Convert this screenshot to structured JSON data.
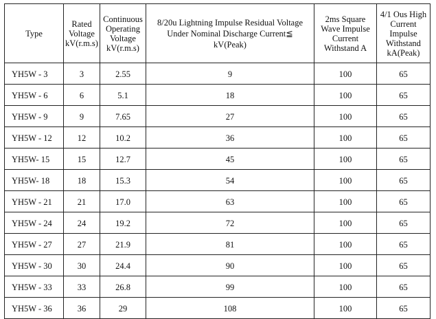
{
  "table": {
    "headers": {
      "type": "Type",
      "rated_voltage": "Rated\nVoltage\nkV(r.m.s)",
      "continuous_voltage": "Continuous\nOperating\nVoltage\nkV(r.m.s)",
      "residual_voltage": "8/20u Lightning Impulse Residual Voltage\nUnder Nominal Discharge Current≦\nkV(Peak)",
      "square_wave": "2ms Square\nWave Impulse\nCurrent\nWithstand A",
      "high_current": "4/1 Ous High\nCurrent\nImpulse\nWithstand\nkA(Peak)"
    },
    "rows": [
      {
        "type": "YH5W - 3",
        "rated": "3",
        "continuous": "2.55",
        "residual": "9",
        "square": "100",
        "high": "65"
      },
      {
        "type": "YH5W - 6",
        "rated": "6",
        "continuous": "5.1",
        "residual": "18",
        "square": "100",
        "high": "65"
      },
      {
        "type": "YH5W - 9",
        "rated": "9",
        "continuous": "7.65",
        "residual": "27",
        "square": "100",
        "high": "65"
      },
      {
        "type": "YH5W - 12",
        "rated": "12",
        "continuous": "10.2",
        "residual": "36",
        "square": "100",
        "high": "65"
      },
      {
        "type": "YH5W- 15",
        "rated": "15",
        "continuous": "12.7",
        "residual": "45",
        "square": "100",
        "high": "65"
      },
      {
        "type": "YH5W- 18",
        "rated": "18",
        "continuous": "15.3",
        "residual": "54",
        "square": "100",
        "high": "65"
      },
      {
        "type": "YH5W - 21",
        "rated": "21",
        "continuous": "17.0",
        "residual": "63",
        "square": "100",
        "high": "65"
      },
      {
        "type": "YH5W - 24",
        "rated": "24",
        "continuous": "19.2",
        "residual": "72",
        "square": "100",
        "high": "65"
      },
      {
        "type": "YH5W - 27",
        "rated": "27",
        "continuous": "21.9",
        "residual": "81",
        "square": "100",
        "high": "65"
      },
      {
        "type": "YH5W - 30",
        "rated": "30",
        "continuous": "24.4",
        "residual": "90",
        "square": "100",
        "high": "65"
      },
      {
        "type": "YH5W - 33",
        "rated": "33",
        "continuous": "26.8",
        "residual": "99",
        "square": "100",
        "high": "65"
      },
      {
        "type": "YH5W - 36",
        "rated": "36",
        "continuous": "29",
        "residual": "108",
        "square": "100",
        "high": "65"
      }
    ]
  }
}
